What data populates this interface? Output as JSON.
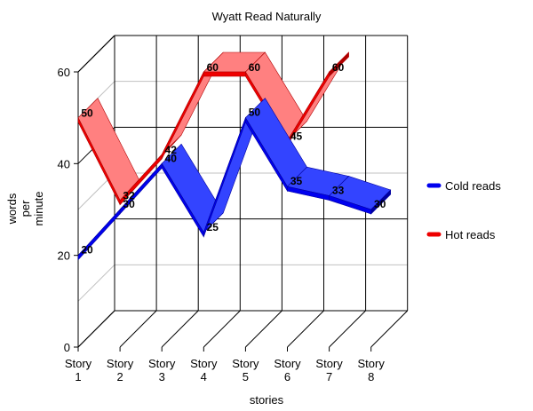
{
  "chart_data": {
    "type": "line",
    "style": "3d-ribbon",
    "title": "Wyatt Read Naturally",
    "xlabel": "stories",
    "ylabel": [
      "words",
      "per",
      "minute"
    ],
    "categories": [
      [
        "Story",
        "1"
      ],
      [
        "Story",
        "2"
      ],
      [
        "Story",
        "3"
      ],
      [
        "Story",
        "4"
      ],
      [
        "Story",
        "5"
      ],
      [
        "Story",
        "6"
      ],
      [
        "Story",
        "7"
      ],
      [
        "Story",
        "8"
      ]
    ],
    "ylim": [
      0,
      60
    ],
    "yticks": [
      0,
      20,
      40,
      60
    ],
    "grid": true,
    "legend_position": "right",
    "series": [
      {
        "name": "Cold reads",
        "values": [
          20,
          30,
          40,
          25,
          50,
          35,
          33,
          30
        ],
        "color": "#0000ee",
        "top_color": "#3344ff",
        "side_color": "#0000a0"
      },
      {
        "name": "Hot reads",
        "values": [
          50,
          32,
          42,
          60,
          60,
          45,
          60,
          null
        ],
        "color": "#ee0000",
        "top_color": "#ff8080",
        "side_color": "#b00000"
      }
    ]
  }
}
